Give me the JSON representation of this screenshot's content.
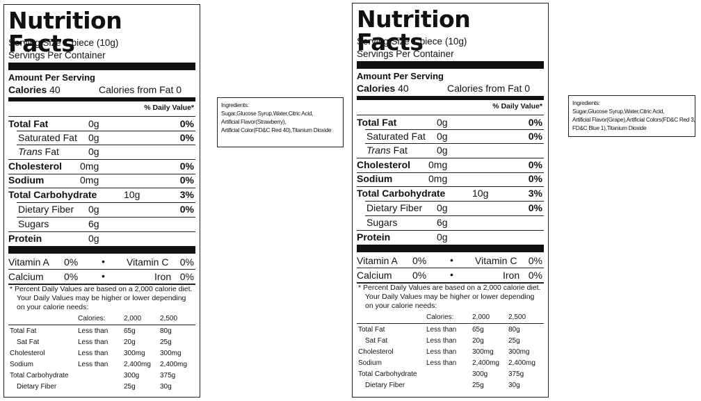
{
  "labels": [
    {
      "title": "Nutrition Facts",
      "serving_size": "Serving Size 1 piece (10g)",
      "servings_per_container": "Servings Per Container",
      "amount_per_serving": "Amount Per Serving",
      "calories_label": "Calories",
      "calories_value": "40",
      "calories_from_fat": "Calories from Fat 0",
      "dv_header": "% Daily Value*",
      "rows": {
        "total_fat": {
          "label": "Total Fat",
          "amount": "0g",
          "dv": "0%"
        },
        "saturated_fat": {
          "label": "Saturated Fat",
          "amount": "0g",
          "dv": "0%"
        },
        "trans_fat": {
          "label": "Trans",
          "suffix": "Fat",
          "amount": "0g"
        },
        "cholesterol": {
          "label": "Cholesterol",
          "amount": "0mg",
          "dv": "0%"
        },
        "sodium": {
          "label": "Sodium",
          "amount": "0mg",
          "dv": "0%"
        },
        "total_carb": {
          "label": "Total Carbohydrate",
          "amount": "10g",
          "dv": "3%"
        },
        "dietary_fiber": {
          "label": "Dietary Fiber",
          "amount": "0g",
          "dv": "0%"
        },
        "sugars": {
          "label": "Sugars",
          "amount": "6g"
        },
        "protein": {
          "label": "Protein",
          "amount": "0g"
        }
      },
      "vitamins": {
        "vitamin_a": {
          "label": "Vitamin A",
          "value": "0%"
        },
        "vitamin_c": {
          "label": "Vitamin C",
          "value": "0%"
        },
        "calcium": {
          "label": "Calcium",
          "value": "0%"
        },
        "iron": {
          "label": "Iron",
          "value": "0%"
        },
        "bullet": "•"
      },
      "footnote": "* Percent Daily Values are based on a 2,000 calorie diet. Your Daily Values may be higher or lower depending on your calorie needs:",
      "footnote_lines": [
        "* Percent Daily Values are based on a 2,000 calorie diet.",
        "Your Daily Values may be higher or lower depending",
        "on your calorie needs:"
      ],
      "footer_table": {
        "header": [
          "",
          "Calories:",
          "2,000",
          "2,500"
        ],
        "rows": [
          [
            "Total Fat",
            "Less than",
            "65g",
            "80g"
          ],
          [
            "Sat Fat",
            "Less than",
            "20g",
            "25g"
          ],
          [
            "Cholesterol",
            "Less than",
            "300mg",
            "300mg"
          ],
          [
            "Sodium",
            "Less than",
            "2,400mg",
            "2,400mg"
          ],
          [
            "Total Carbohydrate",
            "",
            "300g",
            "375g"
          ],
          [
            "Dietary Fiber",
            "",
            "25g",
            "30g"
          ]
        ]
      },
      "ingredients_lines": [
        "Ingredients:",
        "Sugar,Glucose Syrup,Water,Citric Acid,",
        "Artificial Flavor(Strawberry),",
        "Artificial Color(FD&C Red 40),Titanium Dioxide"
      ]
    },
    {
      "title": "Nutrition Facts",
      "serving_size": "Serving Size 1 piece (10g)",
      "servings_per_container": "Servings Per Container",
      "amount_per_serving": "Amount Per Serving",
      "calories_label": "Calories",
      "calories_value": "40",
      "calories_from_fat": "Calories from Fat 0",
      "dv_header": "% Daily Value*",
      "rows": {
        "total_fat": {
          "label": "Total Fat",
          "amount": "0g",
          "dv": "0%"
        },
        "saturated_fat": {
          "label": "Saturated Fat",
          "amount": "0g",
          "dv": "0%"
        },
        "trans_fat": {
          "label": "Trans",
          "suffix": "Fat",
          "amount": "0g"
        },
        "cholesterol": {
          "label": "Cholesterol",
          "amount": "0mg",
          "dv": "0%"
        },
        "sodium": {
          "label": "Sodium",
          "amount": "0mg",
          "dv": "0%"
        },
        "total_carb": {
          "label": "Total Carbohydrate",
          "amount": "10g",
          "dv": "3%"
        },
        "dietary_fiber": {
          "label": "Dietary Fiber",
          "amount": "0g",
          "dv": "0%"
        },
        "sugars": {
          "label": "Sugars",
          "amount": "6g"
        },
        "protein": {
          "label": "Protein",
          "amount": "0g"
        }
      },
      "vitamins": {
        "vitamin_a": {
          "label": "Vitamin A",
          "value": "0%"
        },
        "vitamin_c": {
          "label": "Vitamin C",
          "value": "0%"
        },
        "calcium": {
          "label": "Calcium",
          "value": "0%"
        },
        "iron": {
          "label": "Iron",
          "value": "0%"
        },
        "bullet": "•"
      },
      "footnote": "* Percent Daily Values are based on a 2,000 calorie diet. Your Daily Values may be higher or lower depending on your calorie needs:",
      "footnote_lines": [
        "* Percent Daily Values are based on a 2,000 calorie diet.",
        "Your Daily Values may be higher or lower depending",
        "on your calorie needs:"
      ],
      "footer_table": {
        "header": [
          "",
          "Calories:",
          "2,000",
          "2,500"
        ],
        "rows": [
          [
            "Total Fat",
            "Less than",
            "65g",
            "80g"
          ],
          [
            "Sat Fat",
            "Less than",
            "20g",
            "25g"
          ],
          [
            "Cholesterol",
            "Less than",
            "300mg",
            "300mg"
          ],
          [
            "Sodium",
            "Less than",
            "2,400mg",
            "2,400mg"
          ],
          [
            "Total Carbohydrate",
            "",
            "300g",
            "375g"
          ],
          [
            "Dietary Fiber",
            "",
            "25g",
            "30g"
          ]
        ]
      },
      "ingredients_lines": [
        "Ingredients:",
        "Sugar,Glucose Syrup,Water,Citric Acid,",
        "Artificial Flavor(Grape),Artificial Colors(FD&C Red 3,",
        "FD&C Blue 1),Titanium Dioxide"
      ]
    }
  ]
}
